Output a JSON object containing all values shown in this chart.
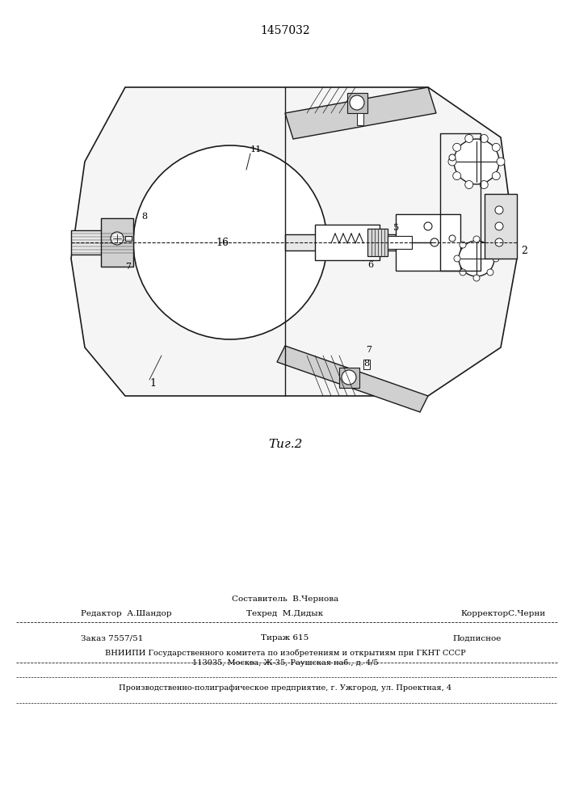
{
  "title": "1457032",
  "fig_label": "Τиг.2",
  "background_color": "#ffffff",
  "line_color": "#1a1a1a",
  "footer_line1_left": "Редактор  А.Шандор",
  "footer_line1_center": "Составитель  В.Чернова\nТехред  М.Дидык",
  "footer_line1_right": "КорректорС.Черни",
  "footer_line2": "Заказ 7557/51              Тираж 615              Подписное",
  "footer_line3": "ВНИИПИ Государственного комитета по изобретениям и открытиям при ГКНТ СССР",
  "footer_line4": "113035, Москва, Ж-35, Раушская наб., д. 4/5",
  "footer_line5": "Производственно-полиграфическое предприятие, г. Ужгород, ул. Проектная, 4"
}
